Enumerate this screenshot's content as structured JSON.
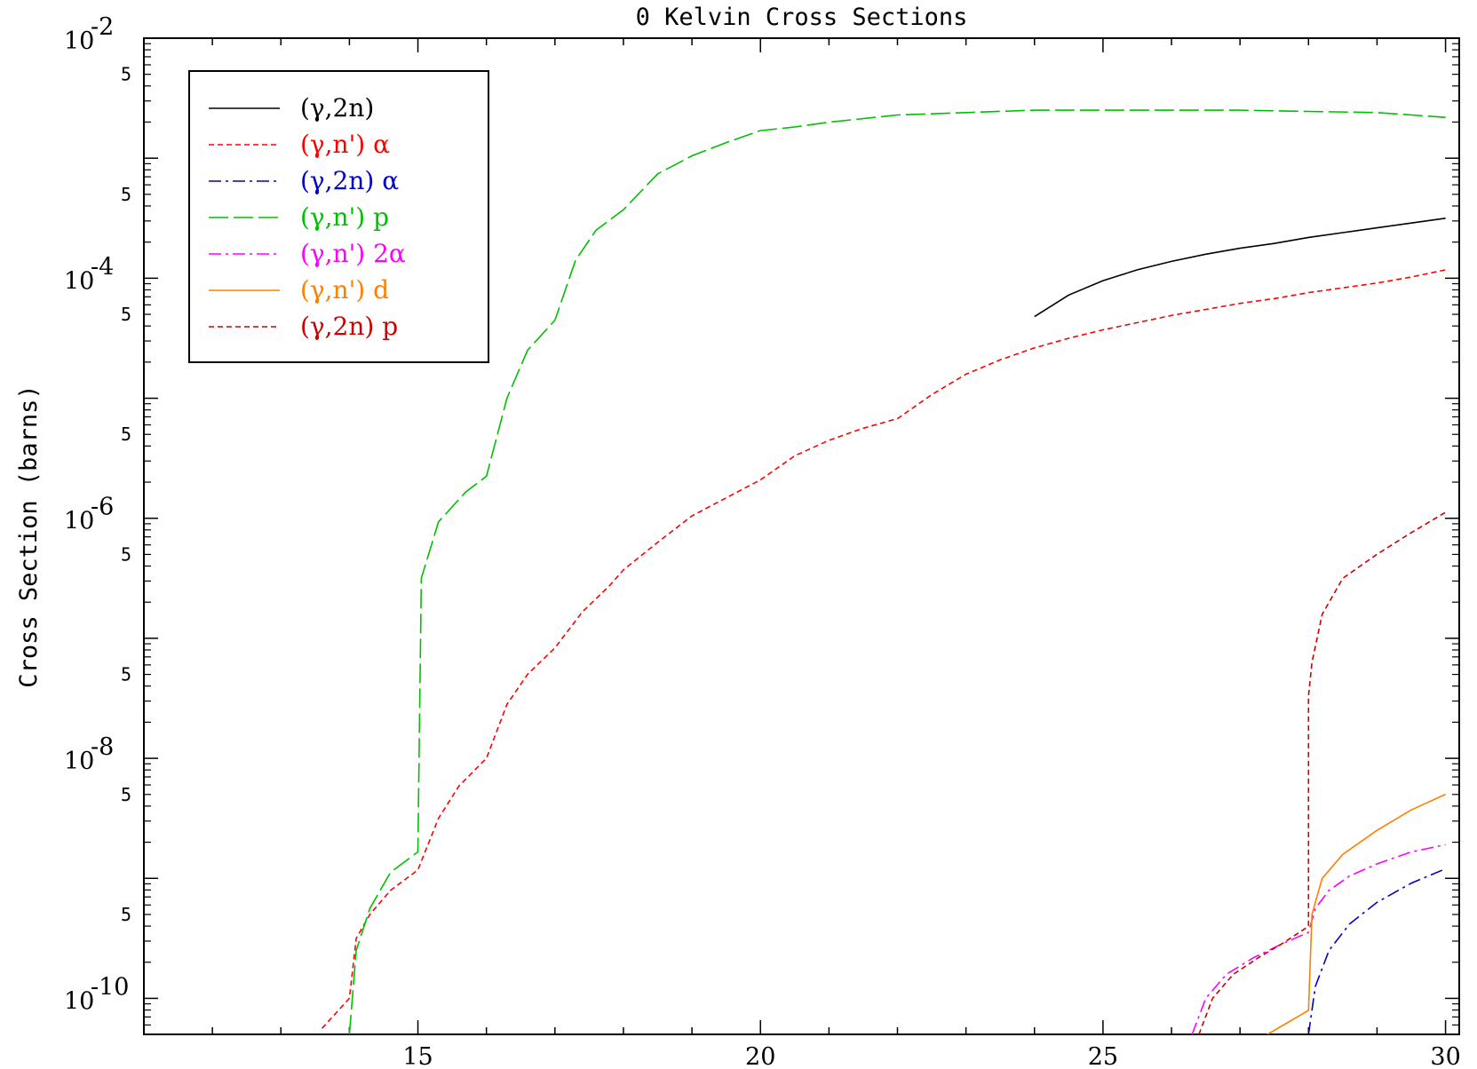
{
  "chart_data": {
    "type": "line",
    "title": "0 Kelvin Cross Sections",
    "ylabel": "Cross Section (barns)",
    "xlabel": "",
    "xlim": [
      11,
      30.2
    ],
    "ylim_log10": [
      -10.3,
      -2
    ],
    "y_scale": "log",
    "x_ticks": [
      15,
      20,
      25,
      30
    ],
    "x_tick_labels": [
      "15",
      "20",
      "25",
      "30"
    ],
    "y_ticks_major": [
      {
        "base": "10",
        "exp": "-2",
        "log": -2
      },
      {
        "base": "10",
        "exp": "-4",
        "log": -4
      },
      {
        "base": "10",
        "exp": "-6",
        "log": -6
      },
      {
        "base": "10",
        "exp": "-8",
        "log": -8
      },
      {
        "base": "10",
        "exp": "-10",
        "log": -10
      }
    ],
    "y_ticks_minor_label": "5",
    "legend_position": "top-left",
    "series": [
      {
        "name": "(γ,2n)",
        "color": "#000000",
        "dash": "solid",
        "points": [
          [
            24.0,
            -4.32
          ],
          [
            24.5,
            -4.14
          ],
          [
            25.0,
            -4.02
          ],
          [
            25.5,
            -3.93
          ],
          [
            26.0,
            -3.86
          ],
          [
            26.5,
            -3.8
          ],
          [
            27.0,
            -3.75
          ],
          [
            27.5,
            -3.71
          ],
          [
            28.0,
            -3.66
          ],
          [
            28.5,
            -3.62
          ],
          [
            29.0,
            -3.58
          ],
          [
            29.5,
            -3.54
          ],
          [
            30.0,
            -3.5
          ]
        ]
      },
      {
        "name": "(γ,n') α",
        "color": "#ff0000",
        "dash": "short",
        "points": [
          [
            13.6,
            -10.25
          ],
          [
            14.0,
            -10.0
          ],
          [
            14.1,
            -9.5
          ],
          [
            14.3,
            -9.3
          ],
          [
            14.6,
            -9.1
          ],
          [
            15.0,
            -8.93
          ],
          [
            15.3,
            -8.5
          ],
          [
            15.6,
            -8.23
          ],
          [
            16.0,
            -8.0
          ],
          [
            16.3,
            -7.55
          ],
          [
            16.6,
            -7.3
          ],
          [
            17.0,
            -7.08
          ],
          [
            17.4,
            -6.78
          ],
          [
            17.8,
            -6.56
          ],
          [
            18.0,
            -6.43
          ],
          [
            18.5,
            -6.2
          ],
          [
            19.0,
            -5.98
          ],
          [
            19.5,
            -5.83
          ],
          [
            20.0,
            -5.68
          ],
          [
            20.5,
            -5.48
          ],
          [
            21.0,
            -5.35
          ],
          [
            21.5,
            -5.25
          ],
          [
            22.0,
            -5.17
          ],
          [
            22.5,
            -4.97
          ],
          [
            23.0,
            -4.8
          ],
          [
            23.5,
            -4.68
          ],
          [
            24.0,
            -4.58
          ],
          [
            24.5,
            -4.5
          ],
          [
            25.0,
            -4.43
          ],
          [
            25.5,
            -4.37
          ],
          [
            26.0,
            -4.31
          ],
          [
            26.5,
            -4.26
          ],
          [
            27.0,
            -4.21
          ],
          [
            27.5,
            -4.17
          ],
          [
            28.0,
            -4.12
          ],
          [
            28.5,
            -4.08
          ],
          [
            29.0,
            -4.04
          ],
          [
            29.5,
            -3.99
          ],
          [
            30.0,
            -3.93
          ]
        ]
      },
      {
        "name": "(γ,2n) α",
        "color": "#0000cc",
        "dash": "dashdot",
        "points": [
          [
            28.0,
            -10.3
          ],
          [
            28.1,
            -9.9
          ],
          [
            28.3,
            -9.6
          ],
          [
            28.6,
            -9.38
          ],
          [
            29.0,
            -9.2
          ],
          [
            29.5,
            -9.04
          ],
          [
            30.0,
            -8.92
          ]
        ]
      },
      {
        "name": "(γ,n') p",
        "color": "#00c000",
        "dash": "long",
        "points": [
          [
            14.0,
            -10.3
          ],
          [
            14.1,
            -9.6
          ],
          [
            14.3,
            -9.25
          ],
          [
            14.6,
            -8.95
          ],
          [
            15.0,
            -8.78
          ],
          [
            15.05,
            -6.5
          ],
          [
            15.3,
            -6.03
          ],
          [
            15.7,
            -5.78
          ],
          [
            16.0,
            -5.65
          ],
          [
            16.3,
            -5.0
          ],
          [
            16.6,
            -4.6
          ],
          [
            17.0,
            -4.35
          ],
          [
            17.3,
            -3.85
          ],
          [
            17.6,
            -3.6
          ],
          [
            18.0,
            -3.43
          ],
          [
            18.5,
            -3.13
          ],
          [
            19.0,
            -2.98
          ],
          [
            19.5,
            -2.87
          ],
          [
            20.0,
            -2.77
          ],
          [
            20.5,
            -2.74
          ],
          [
            21.0,
            -2.7
          ],
          [
            22.0,
            -2.64
          ],
          [
            23.0,
            -2.62
          ],
          [
            24.0,
            -2.6
          ],
          [
            25.0,
            -2.6
          ],
          [
            26.0,
            -2.6
          ],
          [
            27.0,
            -2.6
          ],
          [
            28.0,
            -2.61
          ],
          [
            29.0,
            -2.62
          ],
          [
            30.0,
            -2.66
          ]
        ]
      },
      {
        "name": "(γ,n') 2α",
        "color": "#ff00ff",
        "dash": "dashdot",
        "points": [
          [
            26.3,
            -10.3
          ],
          [
            26.5,
            -10.0
          ],
          [
            26.8,
            -9.8
          ],
          [
            27.2,
            -9.66
          ],
          [
            27.6,
            -9.55
          ],
          [
            28.0,
            -9.45
          ],
          [
            28.1,
            -9.25
          ],
          [
            28.3,
            -9.1
          ],
          [
            28.6,
            -8.98
          ],
          [
            29.0,
            -8.88
          ],
          [
            29.5,
            -8.78
          ],
          [
            30.0,
            -8.72
          ]
        ]
      },
      {
        "name": "(γ,n') d",
        "color": "#ff8000",
        "dash": "solid",
        "points": [
          [
            27.4,
            -10.3
          ],
          [
            27.7,
            -10.2
          ],
          [
            28.0,
            -10.1
          ],
          [
            28.05,
            -9.3
          ],
          [
            28.2,
            -9.0
          ],
          [
            28.5,
            -8.8
          ],
          [
            29.0,
            -8.6
          ],
          [
            29.5,
            -8.43
          ],
          [
            30.0,
            -8.3
          ]
        ]
      },
      {
        "name": "(γ,2n) p",
        "color": "#cc0000",
        "dash": "short",
        "points": [
          [
            26.4,
            -10.3
          ],
          [
            26.6,
            -10.0
          ],
          [
            26.9,
            -9.8
          ],
          [
            27.3,
            -9.65
          ],
          [
            27.6,
            -9.55
          ],
          [
            28.0,
            -9.4
          ],
          [
            28.0,
            -7.48
          ],
          [
            28.05,
            -7.2
          ],
          [
            28.2,
            -6.8
          ],
          [
            28.5,
            -6.5
          ],
          [
            29.0,
            -6.3
          ],
          [
            29.5,
            -6.12
          ],
          [
            30.0,
            -5.95
          ]
        ]
      }
    ]
  }
}
